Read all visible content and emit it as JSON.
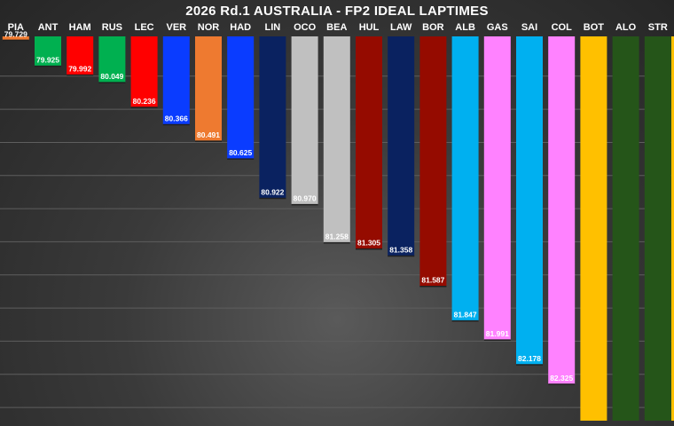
{
  "chart_data": {
    "type": "bar",
    "title": "2026 Rd.1 AUSTRALIA - FP2 IDEAL LAPTIMES",
    "xlabel": "",
    "ylabel": "",
    "ylim": [
      79.7,
      82.6
    ],
    "y_inverted": true,
    "grid": true,
    "categories": [
      "PIA",
      "ANT",
      "HAM",
      "RUS",
      "LEC",
      "VER",
      "NOR",
      "HAD",
      "LIN",
      "OCO",
      "BEA",
      "HUL",
      "LAW",
      "BOR",
      "ALB",
      "GAS",
      "SAI",
      "COL",
      "BOT",
      "ALO",
      "STR"
    ],
    "values": [
      79.729,
      79.925,
      79.992,
      80.049,
      80.236,
      80.366,
      80.491,
      80.625,
      80.922,
      80.97,
      81.258,
      81.305,
      81.358,
      81.587,
      81.847,
      81.991,
      82.178,
      82.325,
      null,
      null,
      null
    ],
    "value_labels": [
      "79.729",
      "79.925",
      "79.992",
      "80.049",
      "80.236",
      "80.366",
      "80.491",
      "80.625",
      "80.922",
      "80.970",
      "81.258",
      "81.305",
      "81.358",
      "81.587",
      "81.847",
      "81.991",
      "82.178",
      "82.325",
      "",
      "",
      ""
    ],
    "colors": [
      "#ee7a30",
      "#00b050",
      "#ff0000",
      "#00b050",
      "#ff0000",
      "#0a3cff",
      "#ee7a30",
      "#0a3cff",
      "#0a2260",
      "#c0c0c0",
      "#c0c0c0",
      "#950b00",
      "#0a2260",
      "#950b00",
      "#00b0f0",
      "#ff82ff",
      "#00b0f0",
      "#ff82ff",
      "#ffc000",
      "#255519",
      "#255519"
    ],
    "label_colors": [
      "#ffffff",
      "#ffffff",
      "#ffffff",
      "#ffffff",
      "#ffffff",
      "#ffffff",
      "#ffffff",
      "#ffffff",
      "#ffffff",
      "#ffffff",
      "#ffffff",
      "#ffffff",
      "#ffffff",
      "#ffffff",
      "#ffffff",
      "#ffffff",
      "#ffffff",
      "#ffffff",
      "#ffffff",
      "#ffffff",
      "#ffffff"
    ]
  }
}
